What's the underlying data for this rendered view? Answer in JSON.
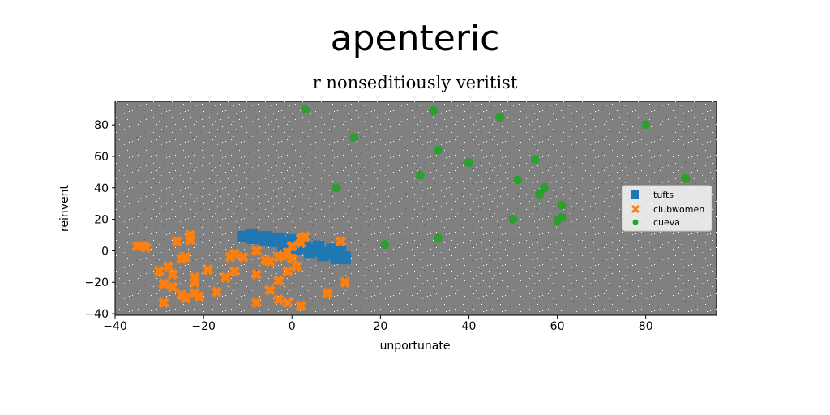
{
  "chart_data": {
    "type": "scatter",
    "title": "apenteric",
    "subtitle": "r nonseditiously veritist",
    "xlabel": "unportunate",
    "ylabel": "reinvent",
    "xlim": [
      -40,
      96
    ],
    "ylim": [
      -41,
      95
    ],
    "xticks": [
      -40,
      -20,
      0,
      20,
      40,
      60,
      80
    ],
    "yticks": [
      -40,
      -20,
      0,
      20,
      40,
      60,
      80
    ],
    "grid": false,
    "legend_position": "center-right",
    "plot_background": "#808080",
    "series": [
      {
        "name": "tufts",
        "marker": "square",
        "color": "#1f77b4",
        "points": [
          [
            -11,
            9
          ],
          [
            -10,
            9
          ],
          [
            -9,
            8
          ],
          [
            -8,
            8
          ],
          [
            -7,
            8
          ],
          [
            -6,
            7
          ],
          [
            -5,
            7
          ],
          [
            -4,
            6
          ],
          [
            -3,
            6
          ],
          [
            -2,
            5
          ],
          [
            -1,
            5
          ],
          [
            0,
            4
          ],
          [
            1,
            4
          ],
          [
            2,
            3
          ],
          [
            3,
            2
          ],
          [
            4,
            1
          ],
          [
            5,
            0
          ],
          [
            6,
            0
          ],
          [
            7,
            -1
          ],
          [
            8,
            -2
          ],
          [
            9,
            -2
          ],
          [
            10,
            -3
          ],
          [
            11,
            -3
          ],
          [
            12,
            -4
          ],
          [
            -9,
            10
          ],
          [
            -6,
            9
          ],
          [
            -3,
            8
          ],
          [
            0,
            7
          ],
          [
            3,
            6
          ],
          [
            6,
            3
          ],
          [
            9,
            1
          ],
          [
            11,
            0
          ],
          [
            -2,
            3
          ],
          [
            1,
            1
          ],
          [
            4,
            -1
          ],
          [
            7,
            -3
          ],
          [
            10,
            -5
          ],
          [
            12,
            -5
          ]
        ]
      },
      {
        "name": "clubwomen",
        "marker": "x",
        "color": "#ff7f0e",
        "points": [
          [
            -34,
            3
          ],
          [
            -26,
            6
          ],
          [
            -23,
            10
          ],
          [
            -23,
            7
          ],
          [
            -25,
            -5
          ],
          [
            -24,
            -4
          ],
          [
            -30,
            -13
          ],
          [
            -28,
            -10
          ],
          [
            -27,
            -15
          ],
          [
            -29,
            -21
          ],
          [
            -27,
            -23
          ],
          [
            -29,
            -33
          ],
          [
            -25,
            -28
          ],
          [
            -24,
            -30
          ],
          [
            -22,
            -27
          ],
          [
            -22,
            -20
          ],
          [
            -21,
            -29
          ],
          [
            -22,
            -17
          ],
          [
            -19,
            -12
          ],
          [
            -17,
            -26
          ],
          [
            -15,
            -17
          ],
          [
            -13,
            -13
          ],
          [
            -14,
            -4
          ],
          [
            -13,
            -2
          ],
          [
            -11,
            -4
          ],
          [
            -8,
            0
          ],
          [
            -8,
            -15
          ],
          [
            -6,
            -6
          ],
          [
            -5,
            -7
          ],
          [
            -3,
            -4
          ],
          [
            -2,
            -3
          ],
          [
            -1,
            -1
          ],
          [
            0,
            -5
          ],
          [
            0,
            3
          ],
          [
            1,
            -10
          ],
          [
            -1,
            -13
          ],
          [
            -3,
            -19
          ],
          [
            -5,
            -25
          ],
          [
            -8,
            -33
          ],
          [
            -3,
            -31
          ],
          [
            -1,
            -33
          ],
          [
            2,
            -35
          ],
          [
            2,
            5
          ],
          [
            2,
            8
          ],
          [
            3,
            9
          ],
          [
            8,
            -27
          ],
          [
            11,
            6
          ],
          [
            12,
            -20
          ],
          [
            -33,
            2
          ],
          [
            -35,
            3
          ]
        ]
      },
      {
        "name": "cueva",
        "marker": "circle",
        "color": "#2ca02c",
        "points": [
          [
            3,
            90
          ],
          [
            14,
            72
          ],
          [
            10,
            40
          ],
          [
            21,
            4
          ],
          [
            29,
            48
          ],
          [
            32,
            89
          ],
          [
            33,
            64
          ],
          [
            33,
            8
          ],
          [
            40,
            56
          ],
          [
            47,
            85
          ],
          [
            50,
            20
          ],
          [
            51,
            45
          ],
          [
            55,
            58
          ],
          [
            56,
            36
          ],
          [
            57,
            40
          ],
          [
            60,
            19
          ],
          [
            61,
            21
          ],
          [
            61,
            29
          ],
          [
            80,
            80
          ],
          [
            89,
            46
          ]
        ]
      }
    ]
  }
}
